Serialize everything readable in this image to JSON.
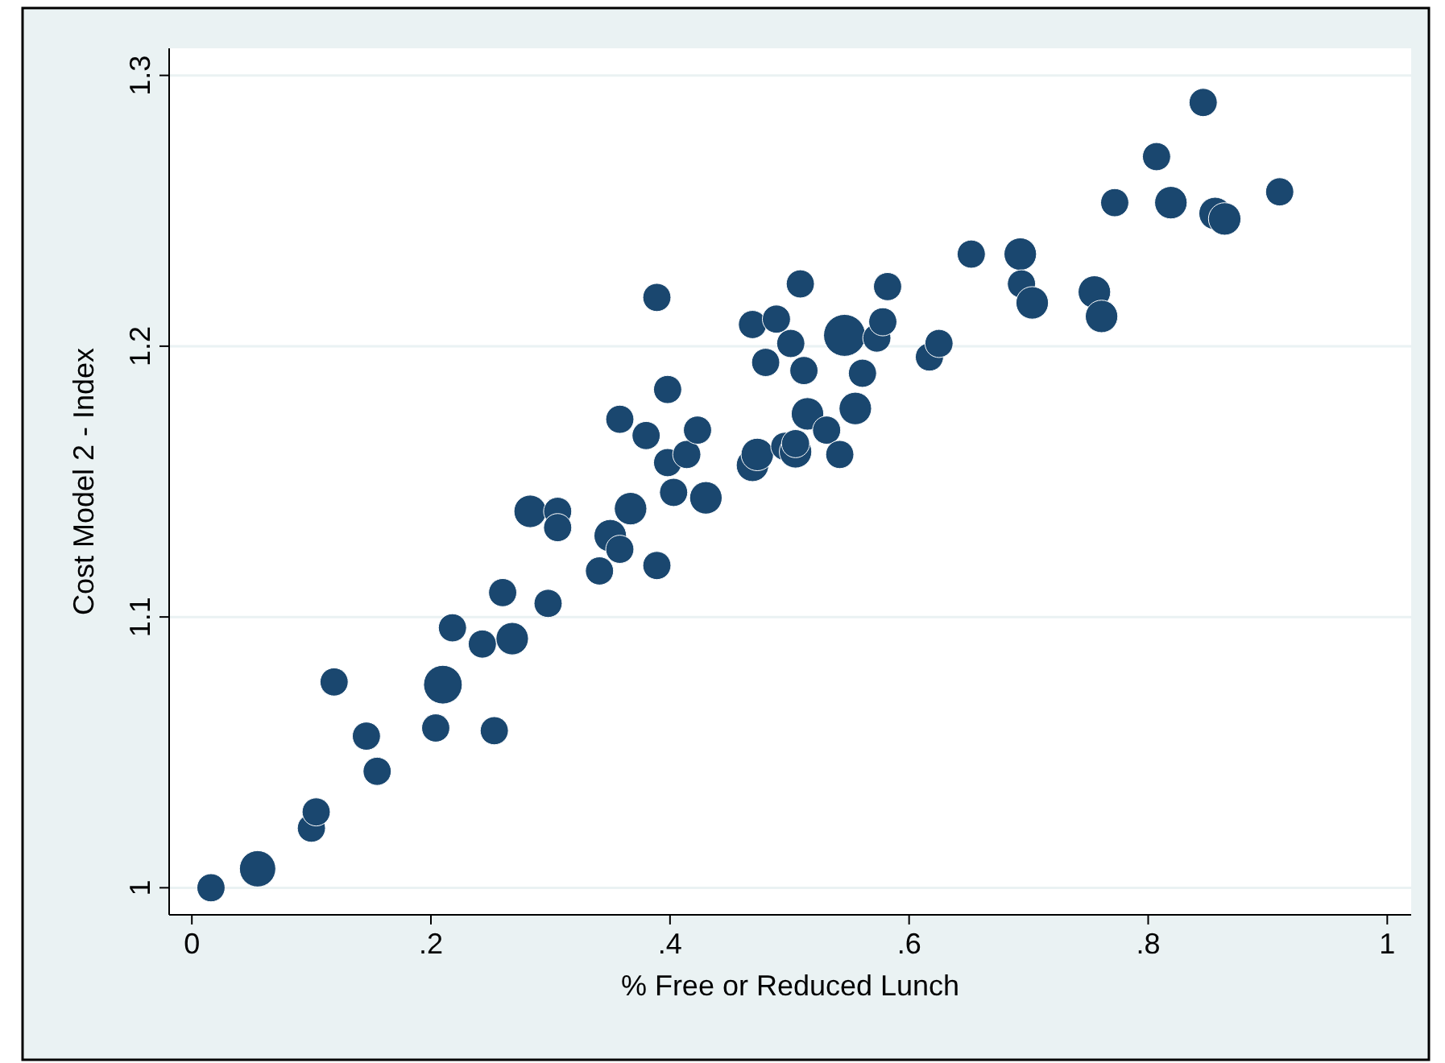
{
  "chart_data": {
    "type": "bubble",
    "xlabel": "% Free or Reduced Lunch",
    "ylabel": "Cost Model 2 - Index",
    "xlim": [
      -0.019,
      1.02
    ],
    "ylim": [
      0.99,
      1.31
    ],
    "xticks": [
      0,
      {
        "value": 0.2,
        "label": ".2"
      },
      {
        "value": 0.4,
        "label": ".4"
      },
      {
        "value": 0.6,
        "label": ".6"
      },
      {
        "value": 0.8,
        "label": ".8"
      },
      1
    ],
    "yticks": [
      1,
      1.1,
      1.2,
      1.3
    ],
    "grid": "y",
    "marker": "circle",
    "series": [
      {
        "color": "#1a476f",
        "x": [
          0.016,
          0.055,
          0.1,
          0.104,
          0.119,
          0.146,
          0.155,
          0.204,
          0.21,
          0.218,
          0.243,
          0.253,
          0.26,
          0.268,
          0.283,
          0.298,
          0.306,
          0.306,
          0.341,
          0.35,
          0.358,
          0.358,
          0.367,
          0.38,
          0.389,
          0.389,
          0.398,
          0.398,
          0.403,
          0.414,
          0.423,
          0.43,
          0.469,
          0.469,
          0.473,
          0.48,
          0.489,
          0.496,
          0.501,
          0.505,
          0.505,
          0.509,
          0.512,
          0.515,
          0.531,
          0.542,
          0.546,
          0.555,
          0.561,
          0.573,
          0.578,
          0.582,
          0.617,
          0.625,
          0.652,
          0.693,
          0.694,
          0.703,
          0.755,
          0.761,
          0.772,
          0.807,
          0.819,
          0.846,
          0.856,
          0.864,
          0.91
        ],
        "values": [
          1.0,
          1.007,
          1.022,
          1.028,
          1.076,
          1.056,
          1.043,
          1.059,
          1.075,
          1.096,
          1.09,
          1.058,
          1.109,
          1.092,
          1.139,
          1.105,
          1.139,
          1.133,
          1.117,
          1.13,
          1.125,
          1.173,
          1.14,
          1.167,
          1.119,
          1.218,
          1.184,
          1.157,
          1.146,
          1.16,
          1.169,
          1.144,
          1.208,
          1.156,
          1.16,
          1.194,
          1.21,
          1.163,
          1.201,
          1.161,
          1.164,
          1.223,
          1.191,
          1.175,
          1.169,
          1.16,
          1.204,
          1.177,
          1.19,
          1.203,
          1.209,
          1.222,
          1.196,
          1.201,
          1.234,
          1.234,
          1.223,
          1.216,
          1.22,
          1.211,
          1.253,
          1.27,
          1.253,
          1.29,
          1.249,
          1.247,
          1.257
        ],
        "sizes": [
          0.45,
          0.75,
          0.45,
          0.45,
          0.45,
          0.45,
          0.45,
          0.45,
          0.85,
          0.45,
          0.45,
          0.45,
          0.45,
          0.6,
          0.6,
          0.45,
          0.45,
          0.45,
          0.45,
          0.6,
          0.45,
          0.45,
          0.6,
          0.45,
          0.45,
          0.45,
          0.45,
          0.45,
          0.45,
          0.45,
          0.45,
          0.6,
          0.45,
          0.6,
          0.6,
          0.45,
          0.45,
          0.45,
          0.45,
          0.6,
          0.45,
          0.45,
          0.45,
          0.6,
          0.45,
          0.45,
          1,
          0.6,
          0.45,
          0.45,
          0.45,
          0.45,
          0.45,
          0.45,
          0.45,
          0.6,
          0.45,
          0.6,
          0.6,
          0.6,
          0.45,
          0.45,
          0.6,
          0.45,
          0.6,
          0.6,
          0.45
        ]
      }
    ]
  }
}
